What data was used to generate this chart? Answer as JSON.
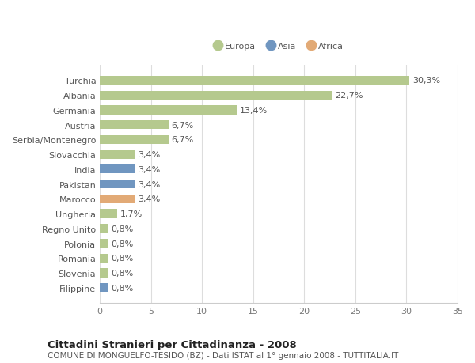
{
  "categories": [
    "Turchia",
    "Albania",
    "Germania",
    "Austria",
    "Serbia/Montenegro",
    "Slovacchia",
    "India",
    "Pakistan",
    "Marocco",
    "Ungheria",
    "Regno Unito",
    "Polonia",
    "Romania",
    "Slovenia",
    "Filippine"
  ],
  "values": [
    30.3,
    22.7,
    13.4,
    6.7,
    6.7,
    3.4,
    3.4,
    3.4,
    3.4,
    1.7,
    0.8,
    0.8,
    0.8,
    0.8,
    0.8
  ],
  "labels": [
    "30,3%",
    "22,7%",
    "13,4%",
    "6,7%",
    "6,7%",
    "3,4%",
    "3,4%",
    "3,4%",
    "3,4%",
    "1,7%",
    "0,8%",
    "0,8%",
    "0,8%",
    "0,8%",
    "0,8%"
  ],
  "continents": [
    "Europa",
    "Europa",
    "Europa",
    "Europa",
    "Europa",
    "Europa",
    "Asia",
    "Asia",
    "Africa",
    "Europa",
    "Europa",
    "Europa",
    "Europa",
    "Europa",
    "Asia"
  ],
  "colors": {
    "Europa": "#b5c98e",
    "Asia": "#7096c0",
    "Africa": "#e2aa76"
  },
  "title": "Cittadini Stranieri per Cittadinanza - 2008",
  "subtitle": "COMUNE DI MONGUELFO-TESIDO (BZ) - Dati ISTAT al 1° gennaio 2008 - TUTTITALIA.IT",
  "xlim": [
    0,
    35
  ],
  "xticks": [
    0,
    5,
    10,
    15,
    20,
    25,
    30,
    35
  ],
  "bg_color": "#ffffff",
  "plot_bg_color": "#ffffff",
  "grid_color": "#dddddd",
  "bar_height": 0.6,
  "label_fontsize": 8,
  "tick_fontsize": 8,
  "title_fontsize": 9.5,
  "subtitle_fontsize": 7.5
}
